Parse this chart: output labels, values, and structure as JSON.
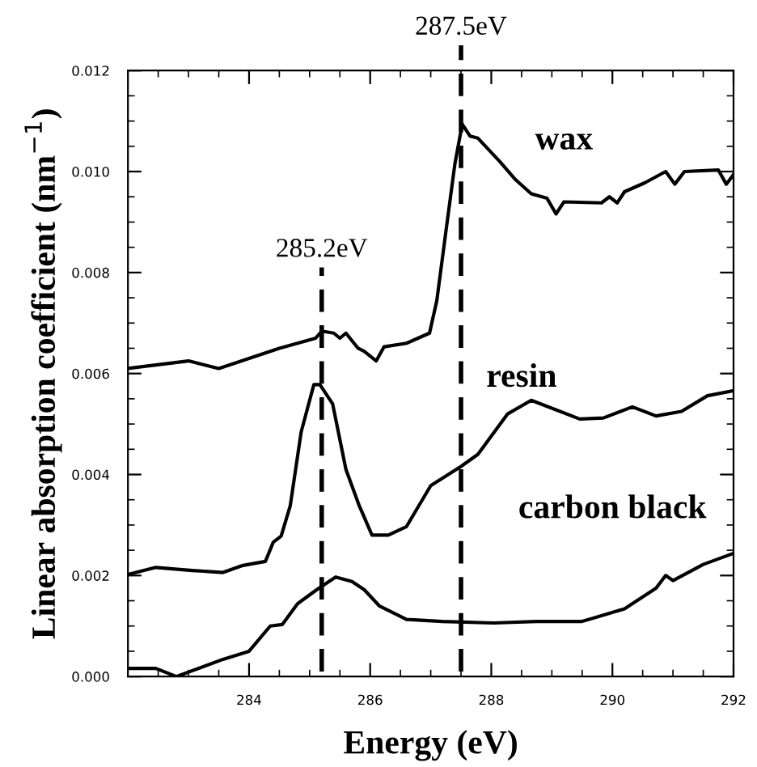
{
  "chart_data": {
    "type": "line",
    "xlabel": "Energy (eV)",
    "ylabel": "Linear absorption coefficient (nm$^{−1}$)",
    "xlim": [
      282,
      292
    ],
    "xticks": [
      284,
      286,
      288,
      290,
      292
    ],
    "ylim": [
      0,
      0.012
    ],
    "yticks": [
      {
        "value": 0,
        "label": "0.000"
      },
      {
        "value": 0.002,
        "label": "0.002"
      },
      {
        "value": 0.004,
        "label": "0.004"
      },
      {
        "value": 0.006,
        "label": "0.006"
      },
      {
        "value": 0.008,
        "label": "0.008"
      },
      {
        "value": 0.01,
        "label": "0.010"
      },
      {
        "value": 0.012,
        "label": "0.012"
      }
    ],
    "grid": false,
    "marker": "none",
    "line_style": "solid",
    "series": [
      {
        "name": "wax",
        "color": "#000000",
        "x": [
          282.0,
          283.0,
          283.5,
          284.5,
          285.1,
          285.2,
          285.4,
          285.5,
          285.6,
          285.8,
          285.9,
          286.1,
          286.23,
          286.6,
          286.98,
          287.1,
          287.26,
          287.4,
          287.52,
          287.65,
          287.78,
          288.14,
          288.4,
          288.66,
          288.92,
          289.07,
          289.2,
          289.82,
          289.95,
          290.08,
          290.2,
          290.54,
          290.88,
          291.03,
          291.19,
          291.75,
          291.88,
          292.0
        ],
        "values": [
          0.0061,
          0.00625,
          0.0061,
          0.0065,
          0.0067,
          0.00684,
          0.0068,
          0.0067,
          0.0068,
          0.0065,
          0.00644,
          0.00625,
          0.00653,
          0.0066,
          0.0068,
          0.00744,
          0.0089,
          0.01016,
          0.01094,
          0.0107,
          0.01066,
          0.0102,
          0.00984,
          0.00956,
          0.00947,
          0.00916,
          0.0094,
          0.00938,
          0.0095,
          0.00938,
          0.0096,
          0.00978,
          0.01,
          0.00975,
          0.01,
          0.01003,
          0.00975,
          0.00994
        ]
      },
      {
        "name": "resin",
        "color": "#000000",
        "x": [
          282.03,
          282.46,
          283.06,
          283.57,
          283.9,
          284.27,
          284.4,
          284.53,
          284.68,
          284.86,
          285.07,
          285.17,
          285.38,
          285.6,
          285.82,
          286.03,
          286.3,
          286.6,
          287.0,
          287.5,
          287.78,
          288.27,
          288.66,
          289.46,
          289.85,
          290.33,
          290.72,
          291.14,
          291.57,
          292.0
        ],
        "values": [
          0.00203,
          0.00216,
          0.0021,
          0.00206,
          0.0022,
          0.00228,
          0.00266,
          0.00278,
          0.00338,
          0.00484,
          0.00578,
          0.00578,
          0.0054,
          0.0041,
          0.00338,
          0.0028,
          0.0028,
          0.00297,
          0.00378,
          0.00416,
          0.0044,
          0.0052,
          0.00547,
          0.0051,
          0.00512,
          0.00534,
          0.00516,
          0.00525,
          0.00556,
          0.00566
        ]
      },
      {
        "name": "carbon black",
        "color": "#000000",
        "x": [
          282.03,
          282.46,
          282.8,
          283.57,
          284.0,
          284.35,
          284.55,
          284.8,
          285.12,
          285.43,
          285.7,
          285.9,
          286.15,
          286.6,
          287.19,
          288.04,
          288.74,
          289.5,
          290.2,
          290.72,
          290.88,
          291.0,
          291.5,
          292.0
        ],
        "values": [
          0.00016,
          0.00016,
          0.0,
          0.00034,
          0.0005,
          0.001,
          0.00103,
          0.00144,
          0.00172,
          0.00197,
          0.00188,
          0.00172,
          0.0014,
          0.00113,
          0.00109,
          0.00106,
          0.00109,
          0.00109,
          0.00134,
          0.00175,
          0.002,
          0.0019,
          0.00222,
          0.00244
        ]
      }
    ],
    "ref_lines": [
      {
        "axis": "x",
        "value": 285.2,
        "label": "285.2eV",
        "color": "#000000",
        "line_style": "dashed"
      },
      {
        "axis": "x",
        "value": 287.5,
        "label": "287.5eV",
        "color": "#000000",
        "line_style": "dashed"
      }
    ]
  }
}
